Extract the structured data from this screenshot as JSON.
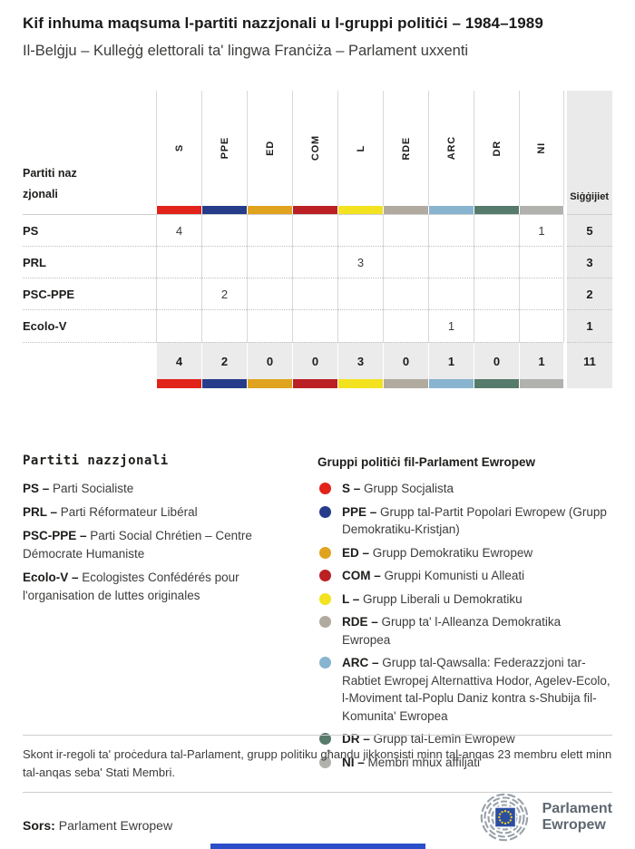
{
  "title": "Kif inhuma maqsuma l-partiti nazzjonali u l-gruppi politiċi – 1984–1989",
  "subtitle": "Il-Belġju – Kulleġġ elettorali ta' lingwa Franċiża – Parlament uxxenti",
  "table": {
    "row_header_label": "Partiti nazzjonali",
    "seats_label": "Siġġijiet",
    "groups": [
      {
        "code": "S",
        "color": "#e2231a"
      },
      {
        "code": "PPE",
        "color": "#263c8a"
      },
      {
        "code": "ED",
        "color": "#e0a31f"
      },
      {
        "code": "COM",
        "color": "#bb2024"
      },
      {
        "code": "L",
        "color": "#f3e21f"
      },
      {
        "code": "RDE",
        "color": "#b1aa9e"
      },
      {
        "code": "ARC",
        "color": "#88b4d0"
      },
      {
        "code": "DR",
        "color": "#567a6b"
      },
      {
        "code": "NI",
        "color": "#b1b1ad"
      }
    ],
    "rows": [
      {
        "party": "PS",
        "values": [
          "4",
          "",
          "",
          "",
          "",
          "",
          "",
          "",
          "1"
        ],
        "seats": "5"
      },
      {
        "party": "PRL",
        "values": [
          "",
          "",
          "",
          "",
          "3",
          "",
          "",
          "",
          ""
        ],
        "seats": "3"
      },
      {
        "party": "PSC-PPE",
        "values": [
          "",
          "2",
          "",
          "",
          "",
          "",
          "",
          "",
          ""
        ],
        "seats": "2"
      },
      {
        "party": "Ecolo-V",
        "values": [
          "",
          "",
          "",
          "",
          "",
          "",
          "1",
          "",
          ""
        ],
        "seats": "1"
      }
    ],
    "totals": {
      "values": [
        "4",
        "2",
        "0",
        "0",
        "3",
        "0",
        "1",
        "0",
        "1"
      ],
      "seats": "11"
    }
  },
  "chart_data": {
    "type": "table",
    "title": "Kif inhuma maqsuma l-partiti nazzjonali u l-gruppi politiċi – 1984–1989",
    "subtitle": "Il-Belġju – Kulleġġ elettorali ta' lingwa Franċiża – Parlament uxxenti",
    "columns": [
      "S",
      "PPE",
      "ED",
      "COM",
      "L",
      "RDE",
      "ARC",
      "DR",
      "NI",
      "Siġġijiet"
    ],
    "rows": [
      {
        "party": "PS",
        "S": 4,
        "PPE": 0,
        "ED": 0,
        "COM": 0,
        "L": 0,
        "RDE": 0,
        "ARC": 0,
        "DR": 0,
        "NI": 1,
        "seats": 5
      },
      {
        "party": "PRL",
        "S": 0,
        "PPE": 0,
        "ED": 0,
        "COM": 0,
        "L": 3,
        "RDE": 0,
        "ARC": 0,
        "DR": 0,
        "NI": 0,
        "seats": 3
      },
      {
        "party": "PSC-PPE",
        "S": 0,
        "PPE": 2,
        "ED": 0,
        "COM": 0,
        "L": 0,
        "RDE": 0,
        "ARC": 0,
        "DR": 0,
        "NI": 0,
        "seats": 2
      },
      {
        "party": "Ecolo-V",
        "S": 0,
        "PPE": 0,
        "ED": 0,
        "COM": 0,
        "L": 0,
        "RDE": 0,
        "ARC": 1,
        "DR": 0,
        "NI": 0,
        "seats": 1
      }
    ],
    "totals": {
      "S": 4,
      "PPE": 2,
      "ED": 0,
      "COM": 0,
      "L": 3,
      "RDE": 0,
      "ARC": 1,
      "DR": 0,
      "NI": 1,
      "seats": 11
    }
  },
  "legend_parties": {
    "heading": "Partiti nazzjonali",
    "items": [
      {
        "abbr": "PS –",
        "text": "Parti Socialiste"
      },
      {
        "abbr": "PRL –",
        "text": "Parti Réformateur Libéral"
      },
      {
        "abbr": "PSC-PPE –",
        "text": "Parti Social Chrétien – Centre Démocrate Humaniste"
      },
      {
        "abbr": "Ecolo-V –",
        "text": "Ecologistes Confédérés pour l'organisation de luttes originales"
      }
    ]
  },
  "legend_groups": {
    "heading": "Gruppi politiċi fil-Parlament Ewropew",
    "items": [
      {
        "abbr": "S –",
        "color": "#e2231a",
        "text": "Grupp Socjalista"
      },
      {
        "abbr": "PPE –",
        "color": "#263c8a",
        "text": "Grupp tal-Partit Popolari Ewropew (Grupp Demokratiku-Kristjan)"
      },
      {
        "abbr": "ED –",
        "color": "#e0a31f",
        "text": "Grupp Demokratiku Ewropew"
      },
      {
        "abbr": "COM –",
        "color": "#bb2024",
        "text": "Gruppi Komunisti u Alleati"
      },
      {
        "abbr": "L –",
        "color": "#f3e21f",
        "text": "Grupp Liberali u Demokratiku"
      },
      {
        "abbr": "RDE –",
        "color": "#b1aa9e",
        "text": "Grupp ta' l-Alleanza Demokratika Ewropea"
      },
      {
        "abbr": "ARC –",
        "color": "#88b4d0",
        "text": "Grupp tal-Qawsalla: Federazzjoni tar-Rabtiet Ewropej Alternattiva Hodor, Agelev-Ecolo, l-Moviment tal-Poplu Daniz kontra s-Shubija fil-Komunita' Ewropea"
      },
      {
        "abbr": "DR –",
        "color": "#567a6b",
        "text": "Grupp tal-Lemin Ewropew"
      },
      {
        "abbr": "NI –",
        "color": "#b1b1ad",
        "text": "Membri mhux affiljati"
      }
    ]
  },
  "footnote": "Skont ir-regoli ta' proċedura tal-Parlament, grupp politiku għandu jikkonsisti minn tal-anqas 23 membru elett minn tal-anqas seba' Stati Membri.",
  "source": {
    "label": "Sors:",
    "text": "Parlament Ewropew"
  },
  "logo": {
    "line1": "Parlament",
    "line2": "Ewropew",
    "flag_blue": "#2b4ea2",
    "star_yellow": "#f7d117"
  },
  "footer": {
    "progress_color": "#2a4fc8"
  }
}
